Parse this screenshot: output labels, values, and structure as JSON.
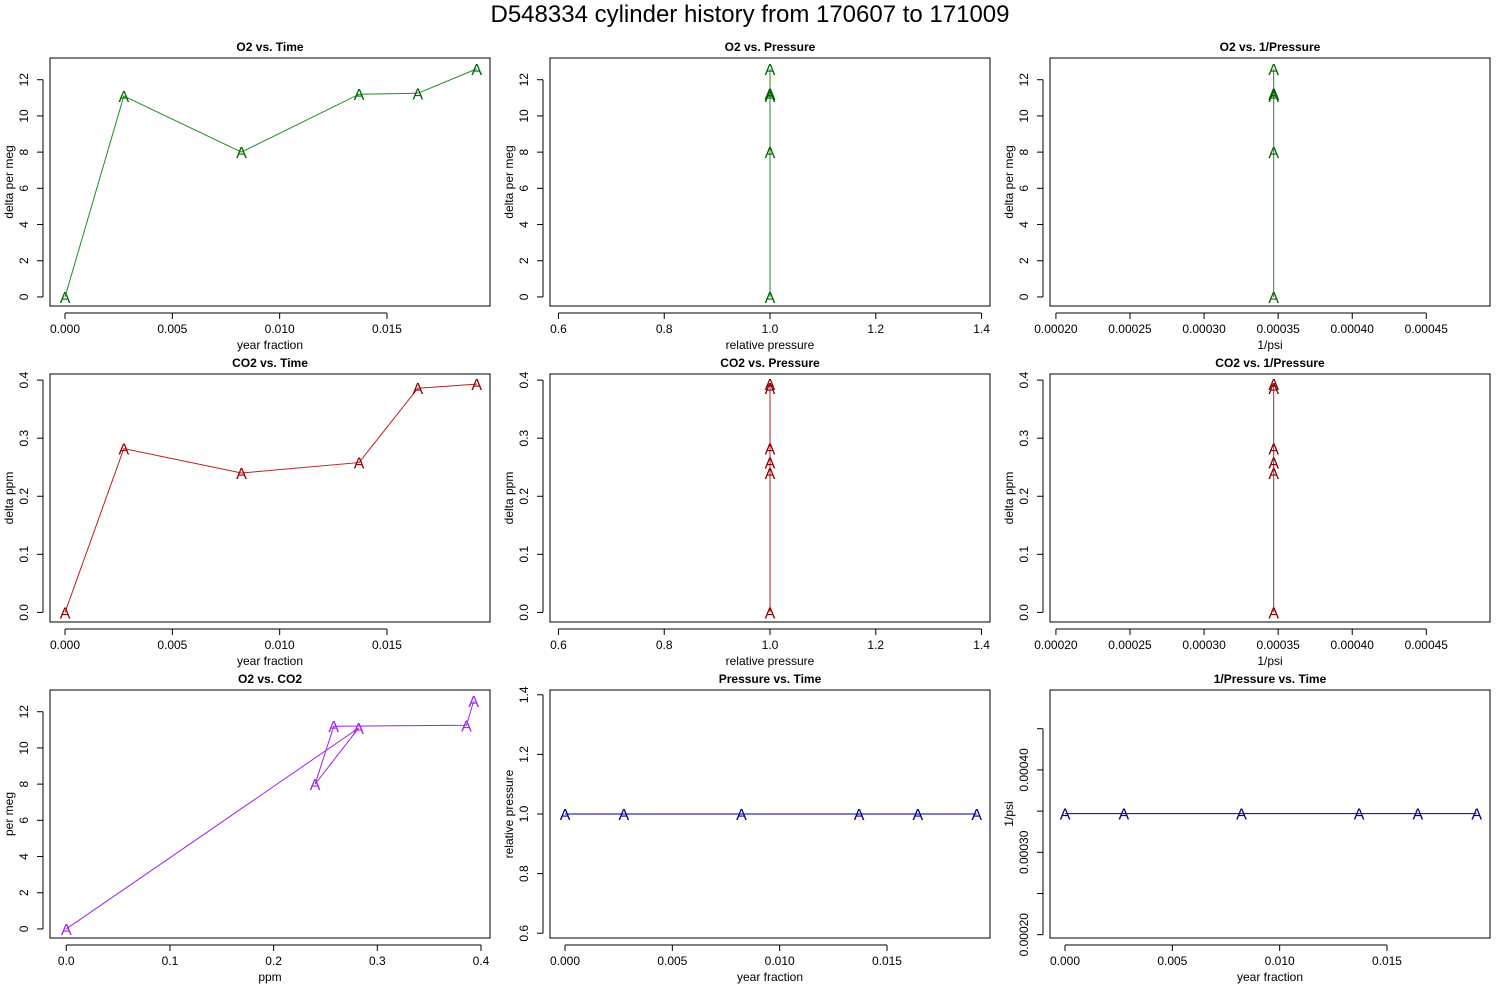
{
  "main_title": "D548334   cylinder history from  170607  to  171009",
  "colors": {
    "o2": "#006400",
    "o2_line": "#228b22",
    "co2": "#8b0000",
    "co2_line": "#b22222",
    "o2co2": "#a020f0",
    "pressure": "#00008b",
    "pressure_line": "#000080"
  },
  "chart_data": [
    {
      "id": "o2-vs-time",
      "type": "line",
      "title": "O2 vs. Time",
      "xlabel": "year fraction",
      "ylabel": "delta per meg",
      "xlim": [
        -0.0007,
        0.0198
      ],
      "ylim": [
        -0.5,
        13.2
      ],
      "xticks": [
        0.0,
        0.005,
        0.01,
        0.015
      ],
      "xtick_labels": [
        "0.000",
        "0.005",
        "0.010",
        "0.015"
      ],
      "yticks": [
        0,
        2,
        4,
        6,
        8,
        10,
        12
      ],
      "ytick_labels": [
        "0",
        "2",
        "4",
        "6",
        "8",
        "10",
        "12"
      ],
      "marker": "A",
      "color_key": "o2",
      "line_color_key": "o2_line",
      "x": [
        0.0,
        0.00274,
        0.00822,
        0.0137,
        0.01644,
        0.01918
      ],
      "y": [
        0.0,
        11.1,
        8.0,
        11.2,
        11.25,
        12.6
      ]
    },
    {
      "id": "o2-vs-pressure",
      "type": "line",
      "title": "O2 vs. Pressure",
      "xlabel": "relative pressure",
      "ylabel": "delta per meg",
      "xlim": [
        0.584,
        1.416
      ],
      "ylim": [
        -0.5,
        13.2
      ],
      "xticks": [
        0.6,
        0.8,
        1.0,
        1.2,
        1.4
      ],
      "xtick_labels": [
        "0.6",
        "0.8",
        "1.0",
        "1.2",
        "1.4"
      ],
      "yticks": [
        0,
        2,
        4,
        6,
        8,
        10,
        12
      ],
      "ytick_labels": [
        "0",
        "2",
        "4",
        "6",
        "8",
        "10",
        "12"
      ],
      "marker": "A",
      "color_key": "o2",
      "line_color_key": "o2_line",
      "x": [
        1.0,
        1.0,
        1.0,
        1.0,
        1.0,
        1.0
      ],
      "y": [
        0.0,
        11.1,
        8.0,
        11.2,
        11.25,
        12.6
      ]
    },
    {
      "id": "o2-vs-inv-pressure",
      "type": "line",
      "title": "O2 vs. 1/Pressure",
      "xlabel": "1/psi",
      "ylabel": "delta per meg",
      "xlim": [
        0.000196,
        0.000493
      ],
      "ylim": [
        -0.5,
        13.2
      ],
      "xticks": [
        0.0002,
        0.00025,
        0.0003,
        0.00035,
        0.0004,
        0.00045
      ],
      "xtick_labels": [
        "0.00020",
        "0.00025",
        "0.00030",
        "0.00035",
        "0.00040",
        "0.00045"
      ],
      "yticks": [
        0,
        2,
        4,
        6,
        8,
        10,
        12
      ],
      "ytick_labels": [
        "0",
        "2",
        "4",
        "6",
        "8",
        "10",
        "12"
      ],
      "marker": "A",
      "color_key": "o2",
      "line_color_key": "o2_line",
      "x": [
        0.000347,
        0.000347,
        0.000347,
        0.000347,
        0.000347,
        0.000347
      ],
      "y": [
        0.0,
        11.1,
        8.0,
        11.2,
        11.25,
        12.6
      ]
    },
    {
      "id": "co2-vs-time",
      "type": "line",
      "title": "CO2 vs. Time",
      "xlabel": "year fraction",
      "ylabel": "delta ppm",
      "xlim": [
        -0.0007,
        0.0198
      ],
      "ylim": [
        -0.0165,
        0.4105
      ],
      "xticks": [
        0.0,
        0.005,
        0.01,
        0.015
      ],
      "xtick_labels": [
        "0.000",
        "0.005",
        "0.010",
        "0.015"
      ],
      "yticks": [
        0.0,
        0.1,
        0.2,
        0.3,
        0.4
      ],
      "ytick_labels": [
        "0.0",
        "0.1",
        "0.2",
        "0.3",
        "0.4"
      ],
      "marker": "A",
      "color_key": "co2",
      "line_color_key": "co2_line",
      "x": [
        0.0,
        0.00274,
        0.00822,
        0.0137,
        0.01644,
        0.01918
      ],
      "y": [
        0.0,
        0.282,
        0.24,
        0.258,
        0.386,
        0.393
      ]
    },
    {
      "id": "co2-vs-pressure",
      "type": "line",
      "title": "CO2 vs. Pressure",
      "xlabel": "relative pressure",
      "ylabel": "delta ppm",
      "xlim": [
        0.584,
        1.416
      ],
      "ylim": [
        -0.0165,
        0.4105
      ],
      "xticks": [
        0.6,
        0.8,
        1.0,
        1.2,
        1.4
      ],
      "xtick_labels": [
        "0.6",
        "0.8",
        "1.0",
        "1.2",
        "1.4"
      ],
      "yticks": [
        0.0,
        0.1,
        0.2,
        0.3,
        0.4
      ],
      "ytick_labels": [
        "0.0",
        "0.1",
        "0.2",
        "0.3",
        "0.4"
      ],
      "marker": "A",
      "color_key": "co2",
      "line_color_key": "co2_line",
      "x": [
        1.0,
        1.0,
        1.0,
        1.0,
        1.0,
        1.0
      ],
      "y": [
        0.0,
        0.282,
        0.24,
        0.258,
        0.386,
        0.393
      ]
    },
    {
      "id": "co2-vs-inv-pressure",
      "type": "line",
      "title": "CO2 vs. 1/Pressure",
      "xlabel": "1/psi",
      "ylabel": "delta ppm",
      "xlim": [
        0.000196,
        0.000493
      ],
      "ylim": [
        -0.0165,
        0.4105
      ],
      "xticks": [
        0.0002,
        0.00025,
        0.0003,
        0.00035,
        0.0004,
        0.00045
      ],
      "xtick_labels": [
        "0.00020",
        "0.00025",
        "0.00030",
        "0.00035",
        "0.00040",
        "0.00045"
      ],
      "yticks": [
        0.0,
        0.1,
        0.2,
        0.3,
        0.4
      ],
      "ytick_labels": [
        "0.0",
        "0.1",
        "0.2",
        "0.3",
        "0.4"
      ],
      "marker": "A",
      "color_key": "co2",
      "line_color_key": "co2_line",
      "x": [
        0.000347,
        0.000347,
        0.000347,
        0.000347,
        0.000347,
        0.000347
      ],
      "y": [
        0.0,
        0.282,
        0.24,
        0.258,
        0.386,
        0.393
      ]
    },
    {
      "id": "o2-vs-co2",
      "type": "line",
      "title": "O2 vs. CO2",
      "xlabel": "ppm",
      "ylabel": "per meg",
      "xlim": [
        -0.0157,
        0.4087
      ],
      "ylim": [
        -0.5,
        13.2
      ],
      "xticks": [
        0.0,
        0.1,
        0.2,
        0.3,
        0.4
      ],
      "xtick_labels": [
        "0.0",
        "0.1",
        "0.2",
        "0.3",
        "0.4"
      ],
      "yticks": [
        0,
        2,
        4,
        6,
        8,
        10,
        12
      ],
      "ytick_labels": [
        "0",
        "2",
        "4",
        "6",
        "8",
        "10",
        "12"
      ],
      "marker": "A",
      "color_key": "o2co2",
      "line_color_key": "o2co2",
      "x": [
        0.0,
        0.282,
        0.24,
        0.258,
        0.386,
        0.393
      ],
      "y": [
        0.0,
        11.1,
        8.0,
        11.2,
        11.25,
        12.6
      ]
    },
    {
      "id": "pressure-vs-time",
      "type": "line",
      "title": "Pressure vs. Time",
      "xlabel": "year fraction",
      "ylabel": "relative pressure",
      "xlim": [
        -0.0007,
        0.0198
      ],
      "ylim": [
        0.584,
        1.416
      ],
      "xticks": [
        0.0,
        0.005,
        0.01,
        0.015
      ],
      "xtick_labels": [
        "0.000",
        "0.005",
        "0.010",
        "0.015"
      ],
      "yticks": [
        0.6,
        0.8,
        1.0,
        1.2,
        1.4
      ],
      "ytick_labels": [
        "0.6",
        "0.8",
        "1.0",
        "1.2",
        "1.4"
      ],
      "marker": "A",
      "color_key": "pressure",
      "line_color_key": "pressure_line",
      "x": [
        0.0,
        0.00274,
        0.00822,
        0.0137,
        0.01644,
        0.01918
      ],
      "y": [
        1.0,
        1.0,
        1.0,
        1.0,
        1.0,
        1.0
      ]
    },
    {
      "id": "inv-pressure-vs-time",
      "type": "line",
      "title": "1/Pressure vs. Time",
      "xlabel": "year fraction",
      "ylabel": "1/psi",
      "xlim": [
        -0.0007,
        0.0198
      ],
      "ylim": [
        0.000196,
        0.000497
      ],
      "xticks": [
        0.0,
        0.005,
        0.01,
        0.015
      ],
      "xtick_labels": [
        "0.000",
        "0.005",
        "0.010",
        "0.015"
      ],
      "yticks": [
        0.0002,
        0.00025,
        0.0003,
        0.00035,
        0.0004,
        0.00045
      ],
      "ytick_labels": [
        "0.00020",
        "",
        "0.00030",
        "",
        "0.00040",
        ""
      ],
      "marker": "A",
      "color_key": "pressure",
      "line_color_key": "pressure_line",
      "x": [
        0.0,
        0.00274,
        0.00822,
        0.0137,
        0.01644,
        0.01918
      ],
      "y": [
        0.000347,
        0.000347,
        0.000347,
        0.000347,
        0.000347,
        0.000347
      ]
    }
  ]
}
